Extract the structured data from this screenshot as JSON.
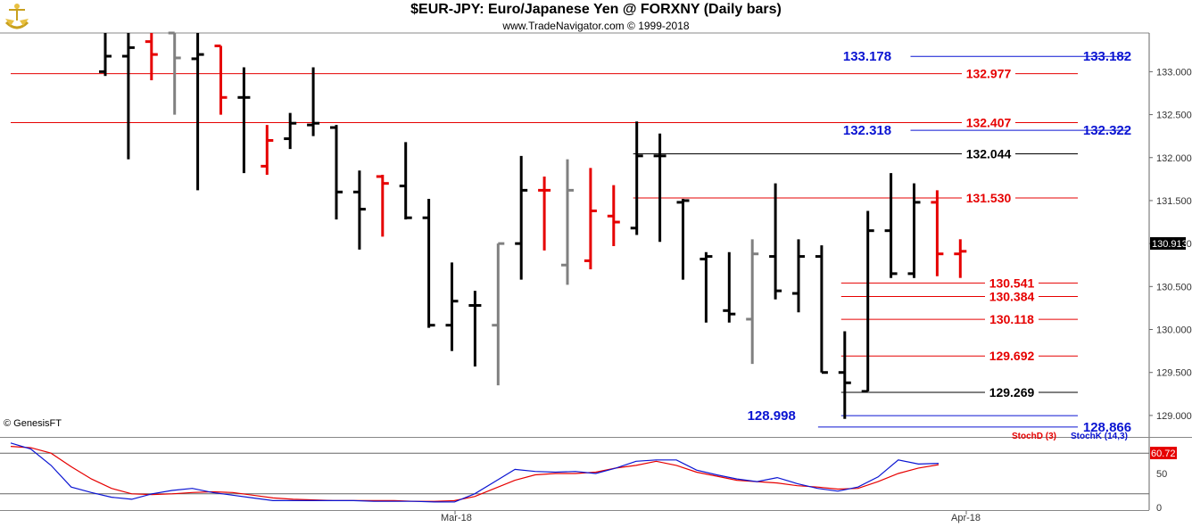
{
  "header": {
    "title": "$EUR-JPY:  Euro/Japanese Yen @ FORXNY  (Daily bars)",
    "copyright": "www.TradeNavigator.com © 1999-2018"
  },
  "watermark": "© GenesisFT",
  "colors": {
    "up": "#000000",
    "down": "#e60000",
    "neutral": "#808080",
    "blue": "#0a14d2",
    "red": "#e60000",
    "black": "#000000"
  },
  "chart_data": [
    {
      "type": "ohlc",
      "title": "$EUR-JPY:  Euro/Japanese Yen @ FORXNY  (Daily bars)",
      "ylim": [
        128.75,
        133.45
      ],
      "y_ticks": [
        "133.000",
        "132.500",
        "132.000",
        "131.500",
        "131.000",
        "130.500",
        "130.000",
        "129.500",
        "129.000"
      ],
      "y_tick_values": [
        133.0,
        132.5,
        132.0,
        131.5,
        131.0,
        130.5,
        130.0,
        129.5,
        129.0
      ],
      "x_labels": [
        "Mar-18",
        "Apr-18"
      ],
      "last_price": "130.913",
      "bars": [
        {
          "o": 133.0,
          "h": 133.45,
          "l": 132.95,
          "c": 133.18,
          "color": "black"
        },
        {
          "o": 133.18,
          "h": 133.45,
          "l": 131.98,
          "c": 133.28,
          "color": "black"
        },
        {
          "o": 133.35,
          "h": 133.45,
          "l": 132.9,
          "c": 133.2,
          "color": "red"
        },
        {
          "o": 133.45,
          "h": 133.45,
          "l": 132.5,
          "c": 133.16,
          "color": "gray"
        },
        {
          "o": 133.15,
          "h": 133.45,
          "l": 131.62,
          "c": 133.2,
          "color": "black"
        },
        {
          "o": 133.3,
          "h": 133.3,
          "l": 132.5,
          "c": 132.7,
          "color": "red"
        },
        {
          "o": 132.7,
          "h": 133.05,
          "l": 131.82,
          "c": 132.7,
          "color": "black"
        },
        {
          "o": 131.9,
          "h": 132.38,
          "l": 131.8,
          "c": 132.2,
          "color": "red"
        },
        {
          "o": 132.22,
          "h": 132.52,
          "l": 132.1,
          "c": 132.4,
          "color": "black"
        },
        {
          "o": 132.38,
          "h": 133.05,
          "l": 132.25,
          "c": 132.4,
          "color": "black"
        },
        {
          "o": 132.35,
          "h": 132.38,
          "l": 131.28,
          "c": 131.6,
          "color": "black"
        },
        {
          "o": 131.6,
          "h": 131.85,
          "l": 130.93,
          "c": 131.4,
          "color": "black"
        },
        {
          "o": 131.78,
          "h": 131.8,
          "l": 131.08,
          "c": 131.7,
          "color": "red"
        },
        {
          "o": 131.67,
          "h": 132.18,
          "l": 131.28,
          "c": 131.3,
          "color": "black"
        },
        {
          "o": 131.3,
          "h": 131.52,
          "l": 130.02,
          "c": 130.05,
          "color": "black"
        },
        {
          "o": 130.05,
          "h": 130.78,
          "l": 129.75,
          "c": 130.33,
          "color": "black"
        },
        {
          "o": 130.28,
          "h": 130.45,
          "l": 129.57,
          "c": 130.28,
          "color": "black"
        },
        {
          "o": 130.05,
          "h": 131.0,
          "l": 129.35,
          "c": 131.0,
          "color": "gray"
        },
        {
          "o": 131.0,
          "h": 132.02,
          "l": 130.58,
          "c": 131.62,
          "color": "black"
        },
        {
          "o": 131.62,
          "h": 131.78,
          "l": 130.92,
          "c": 131.62,
          "color": "red"
        },
        {
          "o": 130.75,
          "h": 131.98,
          "l": 130.52,
          "c": 131.62,
          "color": "gray"
        },
        {
          "o": 130.8,
          "h": 131.88,
          "l": 130.7,
          "c": 131.38,
          "color": "red"
        },
        {
          "o": 131.32,
          "h": 131.68,
          "l": 130.97,
          "c": 131.25,
          "color": "red"
        },
        {
          "o": 131.18,
          "h": 132.42,
          "l": 131.1,
          "c": 132.02,
          "color": "black"
        },
        {
          "o": 132.02,
          "h": 132.28,
          "l": 131.02,
          "c": 132.02,
          "color": "black"
        },
        {
          "o": 131.48,
          "h": 131.52,
          "l": 130.58,
          "c": 131.5,
          "color": "black"
        },
        {
          "o": 130.82,
          "h": 130.9,
          "l": 130.08,
          "c": 130.85,
          "color": "black"
        },
        {
          "o": 130.22,
          "h": 130.9,
          "l": 130.08,
          "c": 130.18,
          "color": "black"
        },
        {
          "o": 130.12,
          "h": 131.05,
          "l": 129.6,
          "c": 130.88,
          "color": "gray"
        },
        {
          "o": 130.85,
          "h": 131.7,
          "l": 130.35,
          "c": 130.45,
          "color": "black"
        },
        {
          "o": 130.42,
          "h": 131.05,
          "l": 130.2,
          "c": 130.85,
          "color": "black"
        },
        {
          "o": 130.85,
          "h": 130.98,
          "l": 129.5,
          "c": 129.5,
          "color": "black"
        },
        {
          "o": 129.5,
          "h": 129.98,
          "l": 128.96,
          "c": 129.38,
          "color": "black"
        },
        {
          "o": 129.28,
          "h": 131.38,
          "l": 129.28,
          "c": 131.15,
          "color": "black"
        },
        {
          "o": 131.15,
          "h": 131.82,
          "l": 130.6,
          "c": 130.65,
          "color": "black"
        },
        {
          "o": 130.65,
          "h": 131.7,
          "l": 130.6,
          "c": 131.48,
          "color": "black"
        },
        {
          "o": 131.48,
          "h": 131.62,
          "l": 130.62,
          "c": 130.88,
          "color": "red"
        },
        {
          "o": 130.88,
          "h": 131.05,
          "l": 130.6,
          "c": 130.91,
          "color": "red"
        }
      ],
      "levels": [
        {
          "value": 133.178,
          "label": "133.178",
          "label2": "133.182",
          "color": "blue",
          "from_bar": 35,
          "label_at_bar": 36
        },
        {
          "value": 132.977,
          "label": "132.977",
          "color": "red",
          "from_bar": 0,
          "label_at_bar": 39
        },
        {
          "value": 132.407,
          "label": "132.407",
          "color": "red",
          "from_bar": 0,
          "label_at_bar": 39
        },
        {
          "value": 132.318,
          "label": "132.318",
          "label2": "132.322",
          "color": "blue",
          "from_bar": 35,
          "label_at_bar": 36
        },
        {
          "value": 132.044,
          "label": "132.044",
          "color": "black",
          "from_bar": 23,
          "label_at_bar": 39
        },
        {
          "value": 131.53,
          "label": "131.530",
          "color": "red",
          "from_bar": 23,
          "label_at_bar": 39
        },
        {
          "value": 130.541,
          "label": "130.541",
          "color": "red",
          "from_bar": 32,
          "label_at_bar": 40
        },
        {
          "value": 130.384,
          "label": "130.384",
          "color": "red",
          "from_bar": 32,
          "label_at_bar": 40
        },
        {
          "value": 130.118,
          "label": "130.118",
          "color": "red",
          "from_bar": 32,
          "label_at_bar": 40
        },
        {
          "value": 129.692,
          "label": "129.692",
          "color": "red",
          "from_bar": 32,
          "label_at_bar": 40
        },
        {
          "value": 129.269,
          "label": "129.269",
          "color": "black",
          "from_bar": 32,
          "label_at_bar": 40
        },
        {
          "value": 128.998,
          "label": "128.998",
          "color": "blue",
          "from_bar": 32,
          "label_at_bar": 32,
          "label_left": true
        },
        {
          "value": 128.866,
          "label": "128.866",
          "color": "blue",
          "from_bar": 31,
          "label_at_bar": 42
        }
      ]
    },
    {
      "type": "line",
      "title": "Stochastic",
      "ylim": [
        0,
        100
      ],
      "y_ticks": [
        "50",
        "0"
      ],
      "y_tick_values": [
        50,
        0
      ],
      "reference_lines": [
        80,
        20
      ],
      "last_value": "60.72",
      "series": [
        {
          "name": "StochD (3)",
          "color": "red",
          "values": [
            90,
            88,
            80,
            60,
            42,
            28,
            20,
            19,
            20,
            22,
            23,
            22,
            18,
            14,
            12,
            11,
            10,
            10,
            10,
            10,
            9,
            9,
            10,
            16,
            28,
            40,
            48,
            50,
            50,
            52,
            58,
            62,
            68,
            62,
            52,
            46,
            40,
            38,
            36,
            32,
            30,
            27,
            28,
            38,
            50,
            58,
            63
          ]
        },
        {
          "name": "StochK (14,3)",
          "color": "blue",
          "values": [
            95,
            86,
            62,
            30,
            22,
            15,
            12,
            20,
            25,
            28,
            22,
            18,
            14,
            10,
            10,
            10,
            10,
            10,
            9,
            9,
            9,
            8,
            8,
            20,
            38,
            56,
            53,
            52,
            53,
            50,
            58,
            68,
            70,
            70,
            55,
            48,
            42,
            38,
            44,
            35,
            28,
            24,
            30,
            45,
            70,
            64,
            65
          ]
        }
      ]
    }
  ]
}
